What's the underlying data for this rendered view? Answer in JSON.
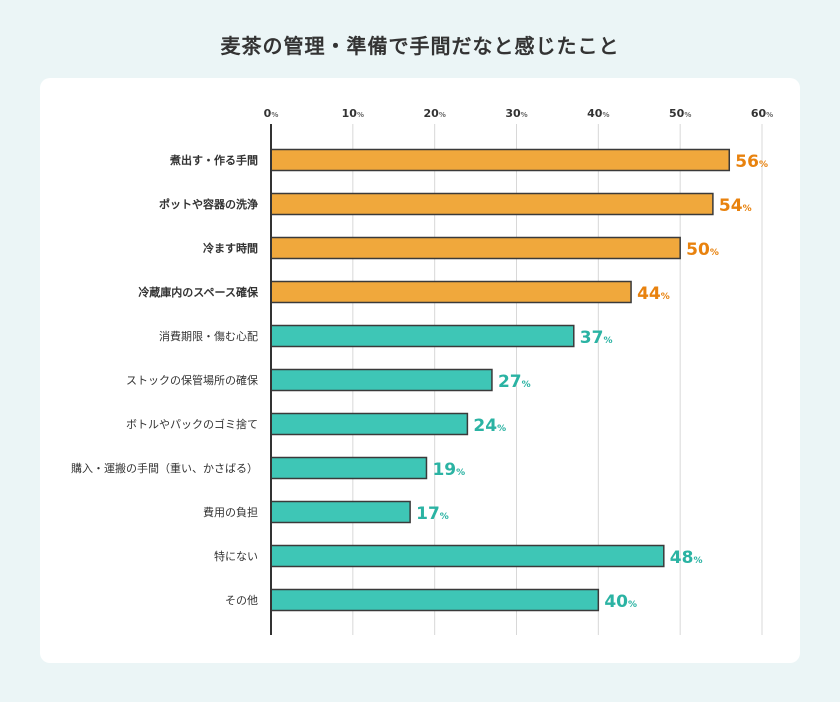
{
  "chart_data": {
    "type": "bar",
    "orientation": "horizontal",
    "title": "麦茶の管理・準備で手間だなと感じたこと",
    "categories": [
      "煮出す・作る手間",
      "ポットや容器の洗浄",
      "冷ます時間",
      "冷蔵庫内のスペース確保",
      "消費期限・傷む心配",
      "ストックの保管場所の確保",
      "ボトルやパックのゴミ捨て",
      "購入・運搬の手間（重い、かさばる）",
      "費用の負担",
      "特にない",
      "その他"
    ],
    "values": [
      56,
      54,
      50,
      44,
      37,
      27,
      24,
      19,
      17,
      48,
      40
    ],
    "highlighted": [
      true,
      true,
      true,
      true,
      false,
      false,
      false,
      false,
      false,
      false,
      false
    ],
    "unit": "%",
    "xlim": [
      0,
      60
    ],
    "ticks": [
      0,
      10,
      20,
      30,
      40,
      50,
      60
    ],
    "grid": true,
    "colors": {
      "highlight": "#f0a83c",
      "highlight_label": "#e8820e",
      "normal": "#3ec6b6",
      "normal_label": "#2bb3a3",
      "border": "#3a3a3a"
    }
  }
}
